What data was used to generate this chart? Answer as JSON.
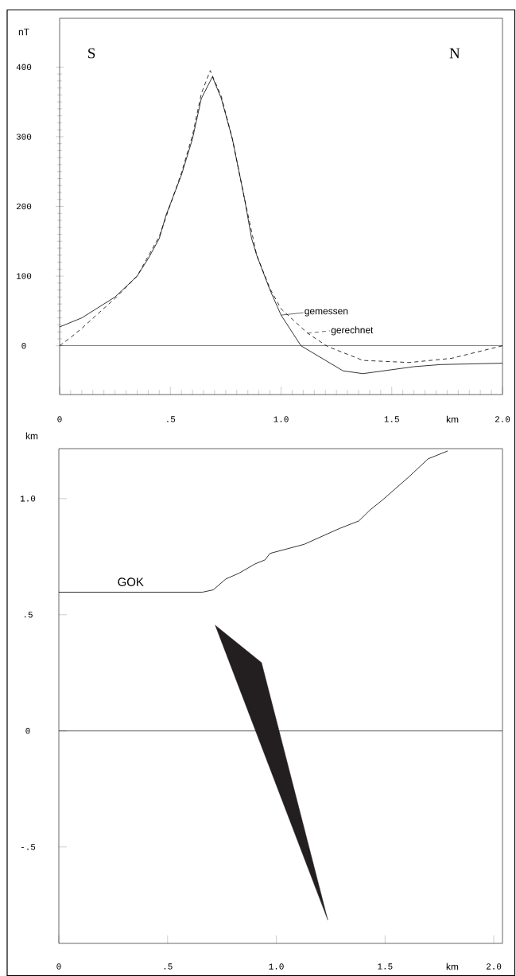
{
  "chart_data": [
    {
      "type": "line",
      "xlabel": "km",
      "ylabel": "nT",
      "xlim": [
        0,
        2
      ],
      "ylim": [
        -70,
        470
      ],
      "xticks": [
        0,
        {
          "value": 0.5,
          "label": ".5"
        },
        {
          "value": 1,
          "label": "1.0"
        },
        {
          "value": 1.5,
          "label": "1.5"
        },
        {
          "value": 2,
          "label": "2.0"
        }
      ],
      "yticks": [
        0,
        100,
        200,
        300,
        400
      ],
      "annotations": [
        "S",
        "N"
      ],
      "legend": "bottom",
      "ref_lines": [
        {
          "axis": "y",
          "value": 0
        }
      ],
      "series": [
        {
          "name": "gemessen",
          "color": "#000000",
          "line_style": "solid",
          "x": [
            0,
            0.1,
            0.25,
            0.35,
            0.4,
            0.45,
            0.48,
            0.55,
            0.6,
            0.64,
            0.69,
            0.73,
            0.78,
            0.835,
            0.867,
            0.89,
            0.95,
            1.0,
            1.09,
            1.28,
            1.37,
            1.6,
            1.72,
            2.0
          ],
          "values": [
            27,
            40,
            70,
            100,
            125,
            154,
            187,
            245,
            297,
            355,
            386,
            355,
            297,
            211,
            154,
            130,
            80,
            44,
            0,
            -36,
            -40,
            -30,
            -27,
            -25
          ]
        },
        {
          "name": "gerechnet",
          "color": "#000000",
          "line_style": "dashed",
          "x": [
            0,
            0.05,
            0.1,
            0.25,
            0.35,
            0.45,
            0.55,
            0.6,
            0.64,
            0.68,
            0.73,
            0.78,
            0.835,
            0.89,
            0.95,
            1.0,
            1.12,
            1.21,
            1.37,
            1.58,
            1.77,
            2.0
          ],
          "values": [
            0,
            12,
            25,
            68,
            100,
            157,
            248,
            302,
            362,
            395,
            358,
            297,
            211,
            130,
            82,
            53,
            18,
            -1,
            -21,
            -24,
            -18,
            0
          ]
        }
      ]
    },
    {
      "type": "line",
      "xlabel": "km",
      "ylabel": "km",
      "xlim": [
        0,
        2.04
      ],
      "ylim": [
        -0.915,
        1.215
      ],
      "xticks": [
        0,
        {
          "value": 0.5,
          "label": ".5"
        },
        {
          "value": 1,
          "label": "1.0"
        },
        {
          "value": 1.5,
          "label": "1.5"
        },
        {
          "value": 2,
          "label": "2.0"
        }
      ],
      "yticks": [
        {
          "value": -0.5,
          "label": "-.5"
        },
        0,
        {
          "value": 0.5,
          "label": ".5"
        },
        {
          "value": 1,
          "label": "1.0"
        }
      ],
      "ref_lines": [
        {
          "axis": "y",
          "value": 0
        }
      ],
      "series": [
        {
          "name": "GOK",
          "color": "#000000",
          "x": [
            0,
            0.66,
            0.71,
            0.768,
            0.827,
            0.903,
            0.948,
            0.971,
            1.128,
            1.29,
            1.38,
            1.43,
            1.487,
            1.608,
            1.698,
            1.788
          ],
          "values": [
            0.597,
            0.597,
            0.607,
            0.654,
            0.678,
            0.719,
            0.736,
            0.764,
            0.803,
            0.871,
            0.904,
            0.95,
            0.993,
            1.092,
            1.171,
            1.205
          ]
        },
        {
          "type": "area",
          "color": "#231f20",
          "x": [
            0.719,
            0.932,
            1.237
          ],
          "values": [
            0.455,
            0.294,
            -0.815
          ]
        }
      ]
    }
  ]
}
